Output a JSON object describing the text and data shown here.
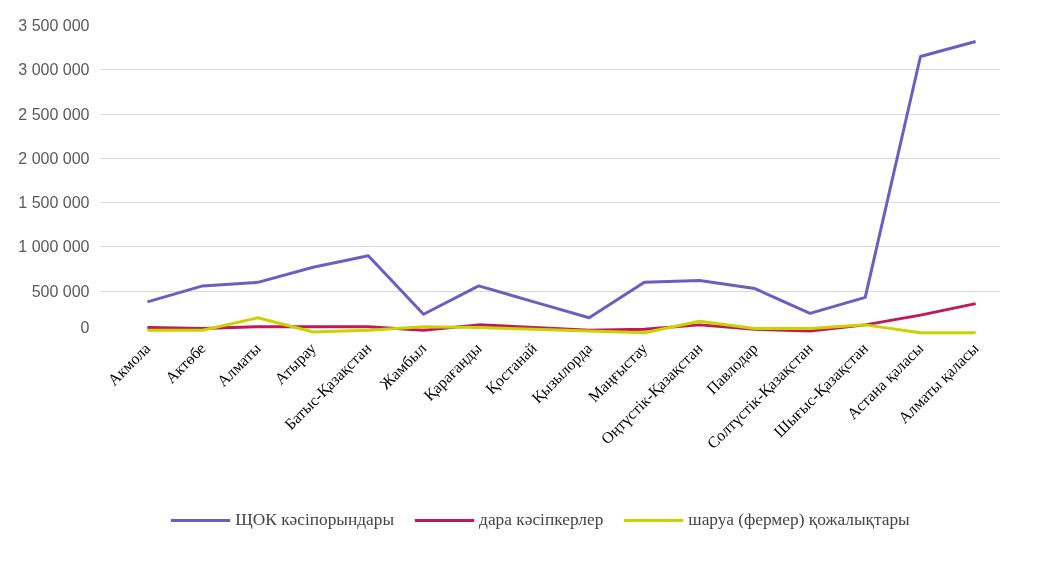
{
  "chart_data": {
    "type": "line",
    "categories": [
      "Акмола",
      "Актөбе",
      "Алматы",
      "Атырау",
      "Батыс-Қазақстан",
      "Жамбыл",
      "Қарағанды",
      "Қостанай",
      "Қызылорда",
      "Маңғыстау",
      "Оңтүстік-Қазақстан",
      "Павлодар",
      "Солтүстік-Қазақстан",
      "Шығыс-Қазақстан",
      "Астана қаласы",
      "Алматы қаласы"
    ],
    "series": [
      {
        "name": "ЩОК кәсіпорындары",
        "color": "#6a5fc1",
        "values": [
          380000,
          560000,
          600000,
          770000,
          900000,
          240000,
          560000,
          380000,
          200000,
          600000,
          620000,
          530000,
          250000,
          430000,
          3150000,
          3320000
        ]
      },
      {
        "name": "дара кәсіпкерлер",
        "color": "#c0185a",
        "values": [
          90000,
          80000,
          100000,
          100000,
          100000,
          60000,
          120000,
          90000,
          60000,
          70000,
          120000,
          70000,
          50000,
          120000,
          230000,
          360000
        ]
      },
      {
        "name": "шаруа (фермер) қожалықтары",
        "color": "#c8d400",
        "values": [
          60000,
          60000,
          200000,
          40000,
          60000,
          100000,
          90000,
          70000,
          50000,
          30000,
          160000,
          80000,
          80000,
          120000,
          30000,
          30000
        ]
      }
    ],
    "ylim": [
      0,
      3500000
    ],
    "yticks": [
      {
        "value": 0,
        "label": "0"
      },
      {
        "value": 500000,
        "label": "500 000"
      },
      {
        "value": 1000000,
        "label": "1 000 000"
      },
      {
        "value": 1500000,
        "label": "1 500 000"
      },
      {
        "value": 2000000,
        "label": "2 000 000"
      },
      {
        "value": 2500000,
        "label": "2 500 000"
      },
      {
        "value": 3000000,
        "label": "3 000 000"
      },
      {
        "value": 3500000,
        "label": "3 500 000"
      }
    ],
    "grid": "y",
    "legend": "bottom",
    "marker": "none",
    "line_style": "solid"
  }
}
